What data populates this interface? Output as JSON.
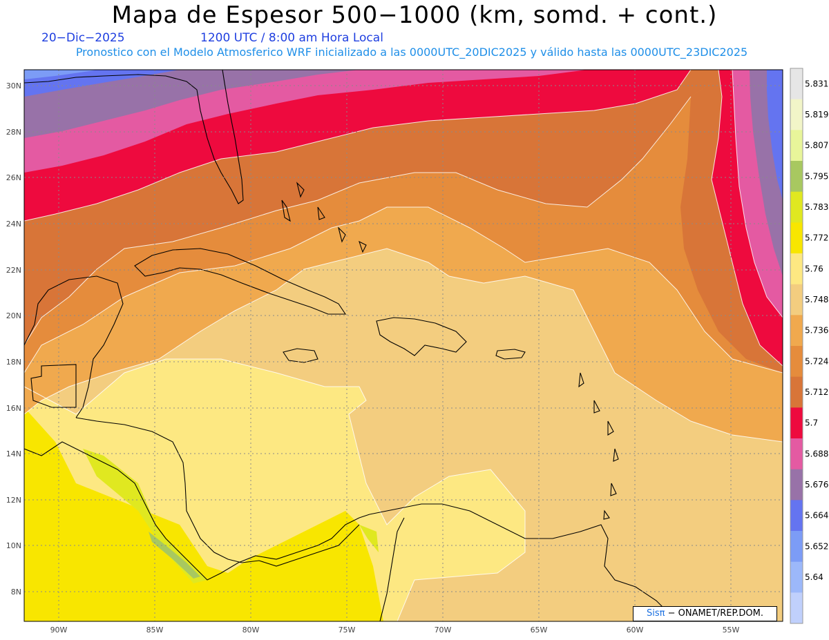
{
  "title": "Mapa de Espesor 500−1000 (km, somd. + cont.)",
  "date": "20−Dic−2025",
  "time": "1200 UTC / 8:00 am Hora Local",
  "forecast": "Pronostico con el Modelo Atmosferico WRF inicializado a las 0000UTC_20DIC2025 y válido hasta las  0000UTC_23DIC2025",
  "lat_labels": [
    "30N",
    "28N",
    "26N",
    "24N",
    "22N",
    "20N",
    "18N",
    "16N",
    "14N",
    "12N",
    "10N",
    "8N"
  ],
  "lon_labels": [
    "90W",
    "85W",
    "80W",
    "75W",
    "70W",
    "65W",
    "60W",
    "55W"
  ],
  "colorbar": {
    "labels": [
      "5.831",
      "5.819",
      "5.807",
      "5.795",
      "5.783",
      "5.772",
      "5.76",
      "5.748",
      "5.736",
      "5.724",
      "5.712",
      "5.7",
      "5.688",
      "5.676",
      "5.664",
      "5.652",
      "5.64"
    ],
    "colors": [
      "#e6e6e6",
      "#f2f5c8",
      "#e8f59a",
      "#a8c860",
      "#e0e820",
      "#f8e600",
      "#fde882",
      "#f3cd7f",
      "#f0a94e",
      "#e58c3c",
      "#d87538",
      "#ee0a3e",
      "#e45aa2",
      "#9872a8",
      "#6474f0",
      "#7c9cf6",
      "#9cb8fa",
      "#c0d0fc"
    ]
  },
  "credit": {
    "sis": "Sisπ",
    "rest": "− ONAMET/REP.DOM."
  }
}
